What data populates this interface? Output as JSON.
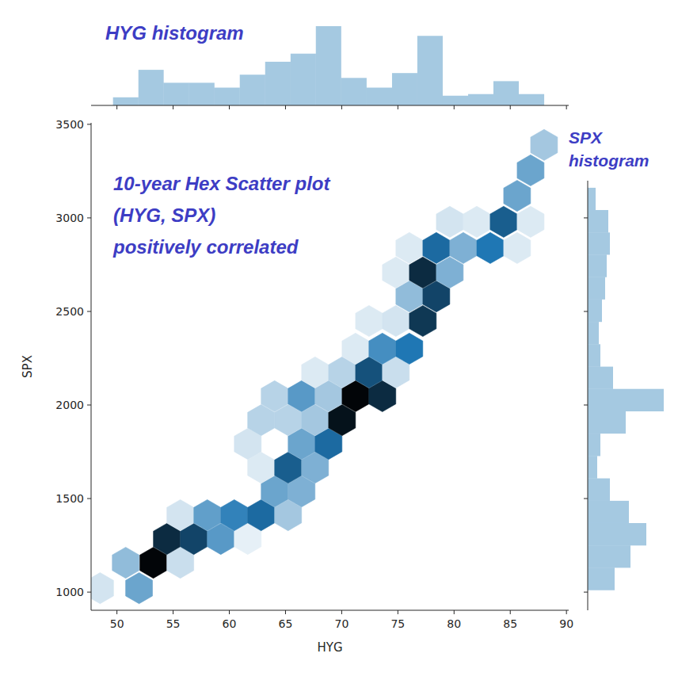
{
  "chart_data": {
    "type": "hexbin",
    "x_label": "HYG",
    "y_label": "SPX",
    "xlim": [
      47.7,
      90.2
    ],
    "ylim": [
      903,
      3508
    ],
    "xticks": [
      50,
      55,
      60,
      65,
      70,
      75,
      80,
      85,
      90
    ],
    "yticks": [
      1000,
      1500,
      2000,
      2500,
      3000,
      3500
    ],
    "color": "#1f77b4",
    "cells": [
      {
        "x": 48.5,
        "y": 1021,
        "count": 3
      },
      {
        "x": 51.97,
        "y": 1021,
        "count": 14
      },
      {
        "x": 50.78,
        "y": 1157,
        "count": 10
      },
      {
        "x": 53.24,
        "y": 1157,
        "count": 40
      },
      {
        "x": 55.64,
        "y": 1157,
        "count": 4
      },
      {
        "x": 54.44,
        "y": 1284,
        "count": 34
      },
      {
        "x": 56.84,
        "y": 1284,
        "count": 30
      },
      {
        "x": 59.24,
        "y": 1284,
        "count": 16
      },
      {
        "x": 61.64,
        "y": 1284,
        "count": 1
      },
      {
        "x": 55.64,
        "y": 1411,
        "count": 3
      },
      {
        "x": 58.04,
        "y": 1411,
        "count": 15
      },
      {
        "x": 60.44,
        "y": 1411,
        "count": 20
      },
      {
        "x": 62.83,
        "y": 1411,
        "count": 24
      },
      {
        "x": 65.23,
        "y": 1411,
        "count": 8
      },
      {
        "x": 64.03,
        "y": 1538,
        "count": 14
      },
      {
        "x": 66.43,
        "y": 1538,
        "count": 12
      },
      {
        "x": 62.83,
        "y": 1665,
        "count": 2
      },
      {
        "x": 65.23,
        "y": 1665,
        "count": 26
      },
      {
        "x": 67.63,
        "y": 1665,
        "count": 12
      },
      {
        "x": 61.64,
        "y": 1792,
        "count": 3
      },
      {
        "x": 66.43,
        "y": 1792,
        "count": 14
      },
      {
        "x": 68.83,
        "y": 1792,
        "count": 24
      },
      {
        "x": 62.83,
        "y": 1919,
        "count": 6
      },
      {
        "x": 65.23,
        "y": 1919,
        "count": 6
      },
      {
        "x": 67.63,
        "y": 1919,
        "count": 8
      },
      {
        "x": 70.03,
        "y": 1919,
        "count": 38
      },
      {
        "x": 64.03,
        "y": 2047,
        "count": 6
      },
      {
        "x": 66.43,
        "y": 2047,
        "count": 16
      },
      {
        "x": 68.83,
        "y": 2047,
        "count": 8
      },
      {
        "x": 71.23,
        "y": 2047,
        "count": 40
      },
      {
        "x": 73.62,
        "y": 2047,
        "count": 34
      },
      {
        "x": 67.63,
        "y": 2174,
        "count": 2
      },
      {
        "x": 70.03,
        "y": 2174,
        "count": 6
      },
      {
        "x": 72.43,
        "y": 2174,
        "count": 28
      },
      {
        "x": 74.82,
        "y": 2174,
        "count": 4
      },
      {
        "x": 71.23,
        "y": 2301,
        "count": 2
      },
      {
        "x": 73.62,
        "y": 2301,
        "count": 18
      },
      {
        "x": 76.02,
        "y": 2301,
        "count": 22
      },
      {
        "x": 72.43,
        "y": 2449,
        "count": 2
      },
      {
        "x": 74.82,
        "y": 2449,
        "count": 3
      },
      {
        "x": 77.22,
        "y": 2449,
        "count": 32
      },
      {
        "x": 76.02,
        "y": 2580,
        "count": 10
      },
      {
        "x": 78.42,
        "y": 2580,
        "count": 30
      },
      {
        "x": 74.82,
        "y": 2708,
        "count": 2
      },
      {
        "x": 77.22,
        "y": 2708,
        "count": 34
      },
      {
        "x": 79.62,
        "y": 2708,
        "count": 12
      },
      {
        "x": 76.02,
        "y": 2839,
        "count": 2
      },
      {
        "x": 78.42,
        "y": 2839,
        "count": 24
      },
      {
        "x": 80.82,
        "y": 2839,
        "count": 12
      },
      {
        "x": 83.22,
        "y": 2839,
        "count": 22
      },
      {
        "x": 85.61,
        "y": 2839,
        "count": 2
      },
      {
        "x": 79.62,
        "y": 2979,
        "count": 3
      },
      {
        "x": 82.02,
        "y": 2979,
        "count": 2
      },
      {
        "x": 84.41,
        "y": 2979,
        "count": 26
      },
      {
        "x": 86.81,
        "y": 2979,
        "count": 2
      },
      {
        "x": 85.61,
        "y": 3118,
        "count": 14
      },
      {
        "x": 86.81,
        "y": 3254,
        "count": 14
      },
      {
        "x": 88.01,
        "y": 3390,
        "count": 8
      }
    ],
    "x_histogram": {
      "bins": [
        49.65,
        51.91,
        54.16,
        56.42,
        58.68,
        60.93,
        63.19,
        65.45,
        67.7,
        69.96,
        72.22,
        74.48,
        76.73,
        78.99,
        81.25,
        83.5,
        85.76,
        88.02
      ],
      "counts": [
        5,
        22,
        14,
        14,
        11,
        19,
        27,
        32,
        49,
        17,
        11,
        20,
        43,
        6,
        7,
        15,
        7
      ]
    },
    "y_histogram": {
      "bins": [
        1010,
        1130,
        1249,
        1369,
        1488,
        1608,
        1727,
        1847,
        1966,
        2086,
        2205,
        2325,
        2444,
        2564,
        2683,
        2803,
        2922,
        3042,
        3161
      ],
      "counts": [
        17,
        27,
        37,
        26,
        14,
        6,
        8,
        24,
        48,
        16,
        8,
        7,
        9,
        11,
        12,
        14,
        13,
        5
      ]
    },
    "annotations": [
      {
        "lines": [
          "HYG histogram"
        ]
      },
      {
        "lines": [
          "SPX",
          "histogram"
        ]
      },
      {
        "lines": [
          "10-year Hex Scatter plot",
          "(HYG, SPX)",
          "positively correlated"
        ]
      }
    ]
  }
}
